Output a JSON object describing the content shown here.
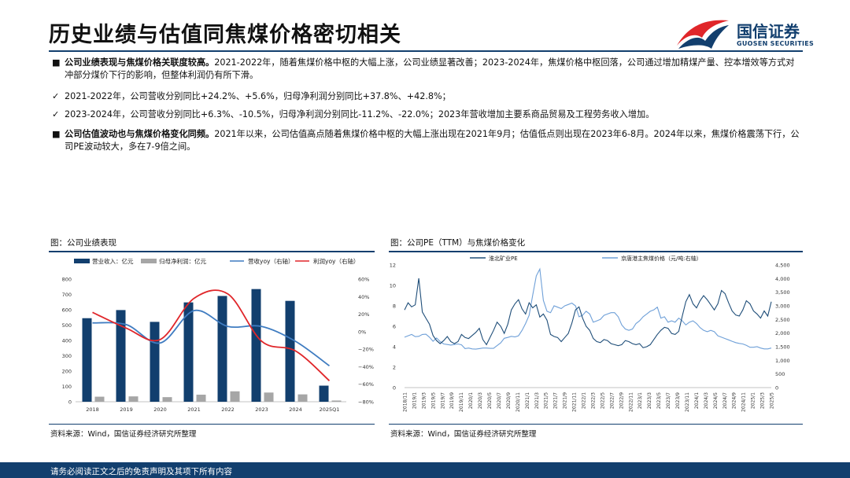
{
  "header": {
    "title": "历史业绩与估值同焦煤价格密切相关",
    "logo_cn": "国信证券",
    "logo_en": "GUOSEN SECURITIES"
  },
  "bullets": [
    {
      "marker": "■",
      "bold": "公司业绩表现与焦煤价格关联度较高。",
      "text": "2021-2022年，随着焦煤价格中枢的大幅上涨，公司业绩显著改善；2023-2024年，焦煤价格中枢回落，公司通过增加精煤产量、控本增效等方式对冲部分煤价下行的影响，但整体利润仍有所下滑。"
    },
    {
      "marker": "✓",
      "bold": "",
      "text": "2021-2022年，公司营收分别同比+24.2%、+5.6%，归母净利润分别同比+37.8%、+42.8%；"
    },
    {
      "marker": "✓",
      "bold": "",
      "text": "2023-2024年，公司营收分别同比+6.3%、-10.5%，归母净利润分别同比-11.2%、-22.0%；2023年营收增加主要系商品贸易及工程劳务收入增加。"
    },
    {
      "marker": "■",
      "bold": "公司估值波动也与焦煤价格变化同频。",
      "text": "2021年以来，公司估值高点随着焦煤价格中枢的大幅上涨出现在2021年9月；估值低点则出现在2023年6-8月。2024年以来，焦煤价格震荡下行，公司PE波动较大，多在7-9倍之间。"
    }
  ],
  "figure_left": {
    "title": "图：公司业绩表现",
    "source": "资料来源：Wind，国信证券经济研究所整理"
  },
  "figure_right": {
    "title": "图：公司PE（TTM）与焦煤价格变化",
    "source": "资料来源：Wind，国信证券经济研究所整理"
  },
  "footer": {
    "text": "请务必阅读正文之后的免责声明及其项下所有内容"
  },
  "colors": {
    "navy": "#123f6e",
    "gray": "#a6a6a6",
    "blue_line": "#3f7cc1",
    "red_line": "#e0262a",
    "pe_line": "#1f4e79",
    "price_line": "#6fa0d8"
  },
  "chart_data": [
    {
      "type": "bar",
      "legend": [
        "营业收入：亿元",
        "归母净利润：亿元",
        "营收yoy（右轴）",
        "利润yoy（右轴）"
      ],
      "categories": [
        "2018",
        "2019",
        "2020",
        "2021",
        "2022",
        "2023",
        "2024",
        "2025Q1"
      ],
      "y_ticks": [
        "800",
        "700",
        "600",
        "500",
        "400",
        "300",
        "200",
        "100",
        "0"
      ],
      "y2_ticks": [
        "60%",
        "40%",
        "20%",
        "0%",
        "−20%",
        "−40%",
        "−60%",
        "−80%"
      ],
      "ylim": [
        0,
        800
      ],
      "y2lim": [
        -80,
        60
      ],
      "series": [
        {
          "name": "营业收入：亿元",
          "type": "bar",
          "values": [
            545,
            598,
            521,
            648,
            690,
            735,
            658,
            105
          ]
        },
        {
          "name": "归母净利润：亿元",
          "type": "bar",
          "values": [
            33,
            35,
            30,
            46,
            68,
            60,
            48,
            8
          ]
        },
        {
          "name": "营收yoy（右轴）",
          "type": "line",
          "values": [
            10,
            8,
            -13,
            24,
            6,
            6,
            -11,
            -39
          ]
        },
        {
          "name": "利润yoy（右轴）",
          "type": "line",
          "values": [
            22,
            4,
            -9,
            38,
            43,
            -11,
            -22,
            -56
          ]
        }
      ]
    },
    {
      "type": "line",
      "legend": [
        "淮北矿业PE",
        "京唐港主焦煤价格（元/吨:右轴）"
      ],
      "x_ticks": [
        "2018/11",
        "2019/1",
        "2019/3",
        "2019/5",
        "2019/7",
        "2019/9",
        "2019/11",
        "2020/1",
        "2020/3",
        "2020/5",
        "2020/7",
        "2020/9",
        "2020/11",
        "2021/1",
        "2021/3",
        "2021/5",
        "2021/7",
        "2021/9",
        "2021/11",
        "2022/1",
        "2022/3",
        "2022/5",
        "2022/7",
        "2022/9",
        "2022/11",
        "2023/1",
        "2023/3",
        "2023/5",
        "2023/7",
        "2023/9",
        "2023/11",
        "2024/1",
        "2024/3",
        "2024/5",
        "2024/7",
        "2024/9",
        "2024/11",
        "2025/1",
        "2025/3",
        "2025/5"
      ],
      "y_ticks": [
        "12",
        "10",
        "8",
        "6",
        "4",
        "2",
        "0"
      ],
      "y2_ticks": [
        "4,500",
        "4,000",
        "3,500",
        "3,000",
        "2,500",
        "2,000",
        "1,500",
        "1,000",
        "500",
        "0"
      ],
      "ylim": [
        0,
        12
      ],
      "y2lim": [
        0,
        4500
      ],
      "series": [
        {
          "name": "淮北矿业PE",
          "values": [
            7.6,
            8.3,
            7.9,
            8.1,
            10.7,
            7.4,
            6.8,
            6.2,
            5.1,
            4.6,
            4.3,
            4.6,
            5.0,
            4.5,
            4.3,
            4.5,
            5.2,
            4.9,
            4.8,
            5.1,
            5.4,
            5.8,
            4.7,
            4.2,
            4.9,
            5.6,
            6.4,
            6.0,
            5.3,
            6.2,
            7.6,
            8.2,
            8.6,
            7.7,
            7.2,
            8.3,
            7.8,
            8.1,
            6.9,
            7.2,
            6.6,
            5.2,
            5.0,
            4.9,
            4.5,
            4.9,
            5.3,
            6.3,
            7.6,
            7.9,
            6.8,
            6.0,
            5.6,
            4.8,
            4.5,
            4.4,
            4.7,
            4.6,
            4.3,
            4.2,
            4.1,
            4.2,
            4.6,
            4.5,
            4.3,
            4.2,
            4.3,
            3.9,
            4.0,
            4.2,
            4.7,
            5.2,
            5.6,
            5.9,
            5.8,
            5.3,
            5.2,
            5.5,
            7.0,
            8.4,
            9.1,
            8.2,
            7.8,
            8.5,
            9.0,
            8.6,
            8.1,
            7.6,
            8.2,
            9.5,
            9.2,
            8.3,
            7.5,
            7.1,
            7.0,
            7.6,
            8.5,
            8.2,
            7.5,
            7.2,
            6.8,
            7.5,
            7.0,
            8.4
          ]
        },
        {
          "name": "京唐港主焦煤价格（元/吨:右轴）",
          "values": [
            1850,
            1900,
            1950,
            1870,
            1880,
            1950,
            1960,
            1850,
            1700,
            1820,
            1690,
            1600,
            1580,
            1560,
            1580,
            1600,
            1570,
            1430,
            1450,
            1420,
            1410,
            1430,
            1450,
            1450,
            1440,
            1440,
            1540,
            1640,
            1810,
            1840,
            1880,
            1860,
            1900,
            2100,
            2350,
            2650,
            3400,
            4100,
            4350,
            3200,
            2800,
            2750,
            3000,
            2950,
            2900,
            3000,
            3050,
            3100,
            3000,
            2600,
            2650,
            2800,
            2700,
            2400,
            2450,
            2500,
            2650,
            2700,
            2750,
            2750,
            2600,
            2300,
            2150,
            2100,
            2150,
            2350,
            2450,
            2600,
            2700,
            2800,
            2850,
            2950,
            2550,
            2600,
            2400,
            2450,
            2400,
            2550,
            2450,
            2300,
            2400,
            2450,
            2350,
            2200,
            2100,
            2050,
            2100,
            2050,
            1900,
            1850,
            1800,
            1750,
            1700,
            1650,
            1620,
            1600,
            1550,
            1480,
            1480,
            1500,
            1450,
            1420,
            1420,
            1450
          ]
        }
      ]
    }
  ]
}
